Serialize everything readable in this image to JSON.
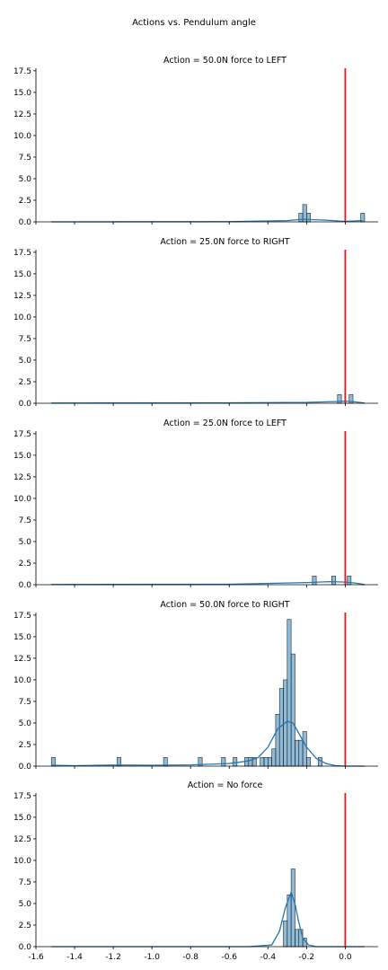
{
  "figure_title": "Actions vs. Pendulum angle",
  "colors": {
    "hist": "#1f77b4",
    "kde": "#1f77b4",
    "vline": "#e3191c"
  },
  "chart_data": [
    {
      "type": "histogram",
      "title": "Action = 50.0N force to LEFT",
      "xlim": [
        -1.6,
        0.17
      ],
      "ylim": [
        0,
        17.8
      ],
      "yticks": [
        0.0,
        2.5,
        5.0,
        7.5,
        10.0,
        12.5,
        15.0,
        17.5
      ],
      "bin_width": 0.02,
      "bins": [
        [
          -0.24,
          1
        ],
        [
          -0.22,
          2
        ],
        [
          -0.2,
          1
        ],
        [
          0.08,
          1
        ]
      ],
      "kde": [
        [
          -1.52,
          0.0
        ],
        [
          -0.6,
          0.02
        ],
        [
          -0.3,
          0.15
        ],
        [
          -0.22,
          0.3
        ],
        [
          -0.1,
          0.2
        ],
        [
          0.0,
          0.05
        ],
        [
          0.08,
          0.15
        ],
        [
          0.09,
          0.1
        ]
      ],
      "vline_x": 0.0,
      "show_xtick_labels": false
    },
    {
      "type": "histogram",
      "title": "Action = 25.0N force to RIGHT",
      "xlim": [
        -1.6,
        0.17
      ],
      "ylim": [
        0,
        17.8
      ],
      "yticks": [
        0.0,
        2.5,
        5.0,
        7.5,
        10.0,
        12.5,
        15.0,
        17.5
      ],
      "bin_width": 0.02,
      "bins": [
        [
          -0.04,
          1
        ],
        [
          0.02,
          1
        ]
      ],
      "kde": [
        [
          -1.52,
          0.02
        ],
        [
          -0.6,
          0.05
        ],
        [
          -0.2,
          0.1
        ],
        [
          -0.05,
          0.2
        ],
        [
          0.0,
          0.25
        ],
        [
          0.04,
          0.2
        ],
        [
          0.1,
          0.02
        ]
      ],
      "vline_x": 0.0,
      "show_xtick_labels": false
    },
    {
      "type": "histogram",
      "title": "Action = 25.0N force to LEFT",
      "xlim": [
        -1.6,
        0.17
      ],
      "ylim": [
        0,
        17.8
      ],
      "yticks": [
        0.0,
        2.5,
        5.0,
        7.5,
        10.0,
        12.5,
        15.0,
        17.5
      ],
      "bin_width": 0.02,
      "bins": [
        [
          -0.17,
          1
        ],
        [
          -0.07,
          1
        ],
        [
          0.01,
          1
        ]
      ],
      "kde": [
        [
          -1.52,
          0.02
        ],
        [
          -0.6,
          0.05
        ],
        [
          -0.2,
          0.25
        ],
        [
          -0.08,
          0.35
        ],
        [
          0.0,
          0.3
        ],
        [
          0.05,
          0.2
        ],
        [
          0.1,
          0.02
        ]
      ],
      "vline_x": 0.0,
      "show_xtick_labels": false
    },
    {
      "type": "histogram",
      "title": "Action = 50.0N force to RIGHT",
      "xlim": [
        -1.6,
        0.17
      ],
      "ylim": [
        0,
        17.8
      ],
      "yticks": [
        0.0,
        2.5,
        5.0,
        7.5,
        10.0,
        12.5,
        15.0,
        17.5
      ],
      "bin_width": 0.02,
      "bins": [
        [
          -1.52,
          1
        ],
        [
          -1.18,
          1
        ],
        [
          -0.94,
          1
        ],
        [
          -0.76,
          1
        ],
        [
          -0.64,
          1
        ],
        [
          -0.58,
          1
        ],
        [
          -0.52,
          1
        ],
        [
          -0.5,
          1
        ],
        [
          -0.48,
          1
        ],
        [
          -0.44,
          1
        ],
        [
          -0.42,
          1
        ],
        [
          -0.4,
          1
        ],
        [
          -0.38,
          2
        ],
        [
          -0.36,
          6
        ],
        [
          -0.34,
          9
        ],
        [
          -0.32,
          10
        ],
        [
          -0.3,
          17
        ],
        [
          -0.28,
          13
        ],
        [
          -0.26,
          3
        ],
        [
          -0.24,
          3
        ],
        [
          -0.22,
          4
        ],
        [
          -0.2,
          1
        ],
        [
          -0.14,
          1
        ]
      ],
      "kde": [
        [
          -1.52,
          0.1
        ],
        [
          -1.4,
          0.05
        ],
        [
          -1.18,
          0.12
        ],
        [
          -1.0,
          0.1
        ],
        [
          -0.8,
          0.15
        ],
        [
          -0.6,
          0.3
        ],
        [
          -0.5,
          0.6
        ],
        [
          -0.45,
          1.0
        ],
        [
          -0.4,
          2.2
        ],
        [
          -0.35,
          4.3
        ],
        [
          -0.3,
          5.2
        ],
        [
          -0.27,
          5.0
        ],
        [
          -0.24,
          3.8
        ],
        [
          -0.2,
          2.2
        ],
        [
          -0.15,
          0.9
        ],
        [
          -0.1,
          0.3
        ],
        [
          -0.05,
          0.05
        ],
        [
          0.0,
          0.0
        ],
        [
          0.1,
          0.0
        ]
      ],
      "vline_x": 0.0,
      "show_xtick_labels": false
    },
    {
      "type": "histogram",
      "title": "Action = No force",
      "xlim": [
        -1.6,
        0.17
      ],
      "ylim": [
        0,
        17.8
      ],
      "yticks": [
        0.0,
        2.5,
        5.0,
        7.5,
        10.0,
        12.5,
        15.0,
        17.5
      ],
      "xticks": [
        -1.6,
        -1.4,
        -1.2,
        -1.0,
        -0.8,
        -0.6,
        -0.4,
        -0.2,
        0.0
      ],
      "bin_width": 0.02,
      "bins": [
        [
          -0.32,
          3
        ],
        [
          -0.3,
          6
        ],
        [
          -0.28,
          9
        ],
        [
          -0.26,
          2
        ],
        [
          -0.24,
          2
        ],
        [
          -0.22,
          1
        ]
      ],
      "kde": [
        [
          -1.52,
          0.0
        ],
        [
          -0.5,
          0.0
        ],
        [
          -0.38,
          0.2
        ],
        [
          -0.34,
          1.8
        ],
        [
          -0.31,
          4.5
        ],
        [
          -0.28,
          6.3
        ],
        [
          -0.26,
          5.0
        ],
        [
          -0.24,
          2.8
        ],
        [
          -0.22,
          1.0
        ],
        [
          -0.19,
          0.2
        ],
        [
          -0.15,
          0.0
        ],
        [
          0.1,
          0.0
        ]
      ],
      "vline_x": 0.0,
      "show_xtick_labels": true
    }
  ]
}
